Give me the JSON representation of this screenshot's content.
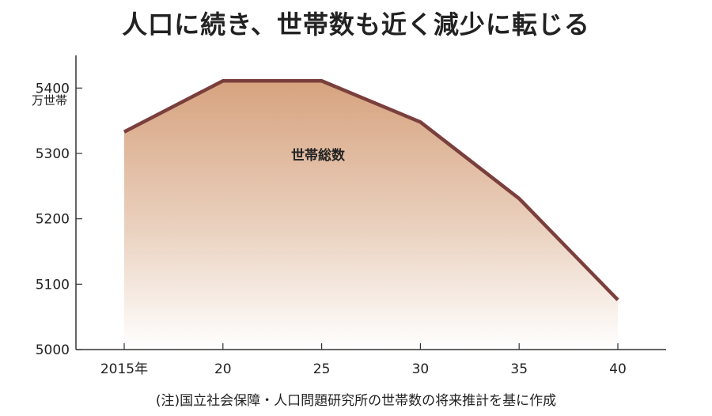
{
  "header": {
    "title": "人口に続き、世帯数も近く減少に転じる"
  },
  "footer": {
    "source": "(注)国立社会保障・人口問題研究所の世帯数の将来推計を基に作成"
  },
  "chart_data": {
    "type": "area",
    "title": "人口に続き、世帯数も近く減少に転じる",
    "y_unit": "万世帯",
    "categories": [
      "2015年",
      "20",
      "25",
      "30",
      "35",
      "40"
    ],
    "x": [
      2015,
      2020,
      2025,
      2030,
      2035,
      2040
    ],
    "series": [
      {
        "name": "世帯総数",
        "values": [
          5333,
          5411,
          5411,
          5348,
          5231,
          5076
        ]
      }
    ],
    "yticks": [
      5000,
      5100,
      5200,
      5300,
      5400
    ],
    "ylim": [
      5000,
      5450
    ],
    "grid": false,
    "colors": {
      "line": "#7a3f3c",
      "fill_top": "#d7a37f",
      "fill_bottom": "#ffffff"
    }
  }
}
